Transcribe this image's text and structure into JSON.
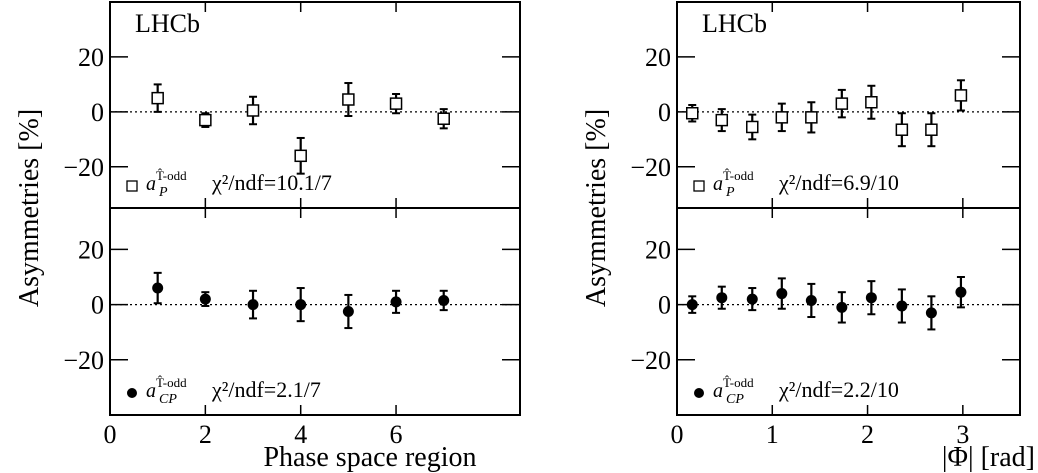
{
  "chart_data": [
    {
      "type": "scatter",
      "annotation": "LHCb",
      "y_label": "Asymmetries [%]",
      "fit_label": "χ²/ndf=10.1/7",
      "xlim": [
        0,
        8.6
      ],
      "ylim": [
        -35,
        40
      ],
      "yticks": [
        {
          "value": -20,
          "label": "−20"
        },
        0,
        20
      ],
      "series": [
        {
          "name": "a",
          "subscript": "P",
          "superscript": "T̂-odd",
          "marker": "open-square",
          "color": "#000000",
          "x": [
            1,
            2,
            3,
            4,
            5,
            6,
            7
          ],
          "values": [
            5,
            -3,
            0.5,
            -16,
            4.5,
            3,
            -2.5
          ],
          "errors": [
            5,
            2.5,
            5,
            6.5,
            6,
            3.5,
            3.5
          ]
        }
      ]
    },
    {
      "type": "scatter",
      "x_label": "Phase space region",
      "fit_label": "χ²/ndf=2.1/7",
      "xlim": [
        0,
        8.6
      ],
      "ylim": [
        -40,
        35
      ],
      "xticks": [
        0,
        2,
        4,
        6
      ],
      "yticks": [
        {
          "value": -20,
          "label": "−20"
        },
        0,
        20
      ],
      "series": [
        {
          "name": "a",
          "subscript": "CP",
          "superscript": "T̂-odd",
          "marker": "filled-circle",
          "color": "#000000",
          "x": [
            1,
            2,
            3,
            4,
            5,
            6,
            7
          ],
          "values": [
            6,
            2,
            0,
            0,
            -2.5,
            1,
            1.5
          ],
          "errors": [
            5.5,
            2.5,
            5,
            6,
            6,
            4,
            3.5
          ]
        }
      ]
    },
    {
      "type": "scatter",
      "annotation": "LHCb",
      "y_label": "Asymmetries [%]",
      "fit_label": "χ²/ndf=6.9/10",
      "xlim": [
        0,
        3.6
      ],
      "ylim": [
        -35,
        40
      ],
      "yticks": [
        {
          "value": -20,
          "label": "−20"
        },
        0,
        20
      ],
      "series": [
        {
          "name": "a",
          "subscript": "P",
          "superscript": "T̂-odd",
          "marker": "open-square",
          "color": "#000000",
          "x": [
            0.16,
            0.47,
            0.79,
            1.1,
            1.41,
            1.73,
            2.04,
            2.36,
            2.67,
            2.98
          ],
          "values": [
            -0.5,
            -3,
            -5.5,
            -2,
            -2,
            3,
            3.5,
            -6.5,
            -6.5,
            6
          ],
          "errors": [
            3,
            4,
            4.5,
            5,
            5.5,
            5,
            6,
            6,
            6,
            5.5
          ]
        }
      ]
    },
    {
      "type": "scatter",
      "x_label": "|Φ| [rad]",
      "fit_label": "χ²/ndf=2.2/10",
      "xlim": [
        0,
        3.6
      ],
      "ylim": [
        -40,
        35
      ],
      "xticks": [
        0,
        1,
        2,
        3
      ],
      "yticks": [
        {
          "value": -20,
          "label": "−20"
        },
        0,
        20
      ],
      "series": [
        {
          "name": "a",
          "subscript": "CP",
          "superscript": "T̂-odd",
          "marker": "filled-circle",
          "color": "#000000",
          "x": [
            0.16,
            0.47,
            0.79,
            1.1,
            1.41,
            1.73,
            2.04,
            2.36,
            2.67,
            2.98
          ],
          "values": [
            0,
            2.5,
            2,
            4,
            1.5,
            -1,
            2.5,
            -0.5,
            -3,
            4.5
          ],
          "errors": [
            3,
            4,
            4,
            5.5,
            6,
            5.5,
            6,
            6,
            6,
            5.5
          ]
        }
      ]
    }
  ]
}
